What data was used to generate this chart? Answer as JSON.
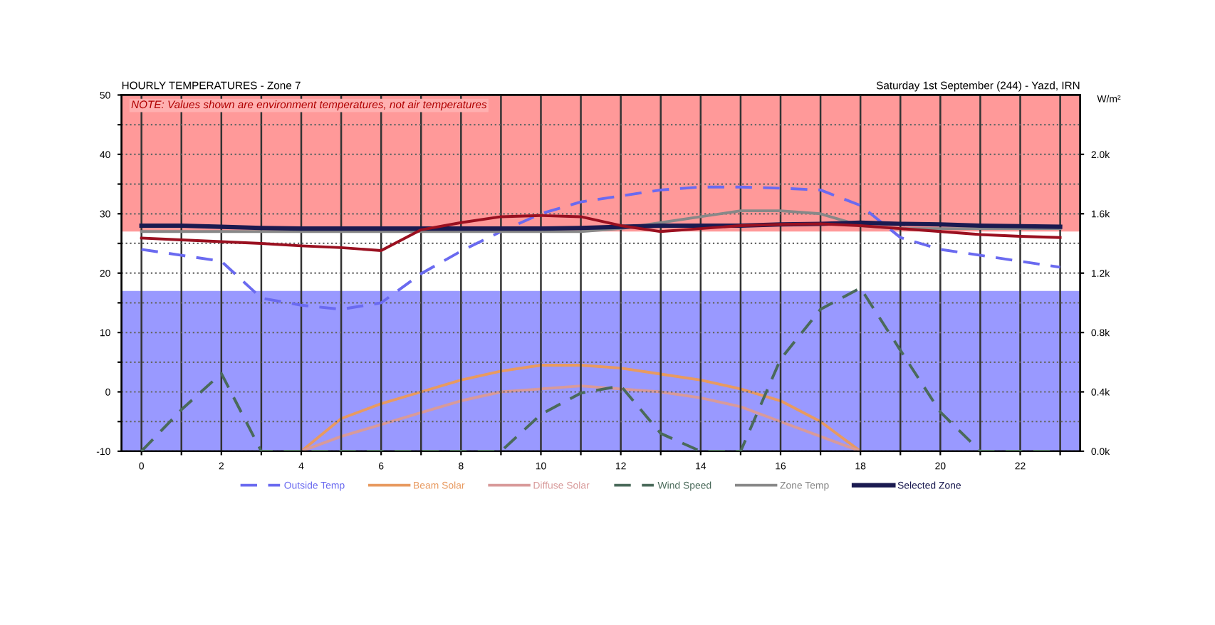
{
  "chart_data": {
    "type": "line",
    "title": "HOURLY TEMPERATURES - Zone 7",
    "subtitle": "Saturday 1st September (244) - Yazd, IRN",
    "y2label": "W/m²",
    "annotations": [
      "NOTE: Values shown are environment temperatures, not air temperatures"
    ],
    "x": [
      0,
      1,
      2,
      3,
      4,
      5,
      6,
      7,
      8,
      9,
      10,
      11,
      12,
      13,
      14,
      15,
      16,
      17,
      18,
      19,
      20,
      21,
      22,
      23
    ],
    "xlim": [
      -0.5,
      23.5
    ],
    "xticks": [
      0,
      {
        "value": 1,
        "label": null
      },
      2,
      {
        "value": 3,
        "label": null
      },
      4,
      {
        "value": 5,
        "label": null
      },
      6,
      {
        "value": 7,
        "label": null
      },
      8,
      {
        "value": 9,
        "label": null
      },
      10,
      {
        "value": 11,
        "label": null
      },
      12,
      {
        "value": 13,
        "label": null
      },
      14,
      {
        "value": 15,
        "label": null
      },
      16,
      {
        "value": 17,
        "label": null
      },
      18,
      {
        "value": 19,
        "label": null
      },
      20,
      {
        "value": 21,
        "label": null
      },
      22,
      {
        "value": 23,
        "label": null
      }
    ],
    "ylim": [
      -10,
      50
    ],
    "yticks": [
      -10,
      {
        "value": -5,
        "label": null
      },
      0,
      {
        "value": 5,
        "label": null
      },
      10,
      {
        "value": 15,
        "label": null
      },
      20,
      {
        "value": 25,
        "label": null
      },
      30,
      {
        "value": 35,
        "label": null
      },
      40,
      {
        "value": 45,
        "label": null
      },
      50
    ],
    "y2lim": [
      0,
      2400
    ],
    "y2ticks": [
      {
        "value": 0,
        "label": "0.0k"
      },
      {
        "value": 400,
        "label": "0.4k"
      },
      {
        "value": 800,
        "label": "0.8k"
      },
      {
        "value": 1200,
        "label": "1.2k"
      },
      {
        "value": 1600,
        "label": "1.6k"
      },
      {
        "value": 2000,
        "label": "2.0k"
      }
    ],
    "bands": [
      {
        "axis": "y",
        "from": 27,
        "to": 50,
        "color": "#ff9999"
      },
      {
        "axis": "y",
        "from": -10,
        "to": 17,
        "color": "#9999ff"
      }
    ],
    "grid": true,
    "legend": "bottom",
    "marker": "none",
    "series": [
      {
        "name": "Outside Temp",
        "color": "#6a6af0",
        "line_style": "dashed",
        "values": [
          24,
          23,
          22,
          15.8,
          14.6,
          13.9,
          15,
          19.9,
          23.7,
          27,
          30,
          32,
          33,
          34,
          34.5,
          34.5,
          34.3,
          34,
          31.4,
          26,
          24,
          23,
          22,
          21
        ]
      },
      {
        "name": "Beam Solar",
        "color": "#e89a60",
        "line_style": "solid",
        "axis": "y2",
        "values": [
          null,
          null,
          null,
          null,
          0,
          220,
          320,
          400,
          480,
          540,
          580,
          580,
          560,
          520,
          480,
          420,
          340,
          200,
          0,
          null,
          null,
          null,
          null,
          null
        ]
      },
      {
        "name": "Diffuse Solar",
        "color": "#d89a9a",
        "line_style": "solid",
        "axis": "y2",
        "values": [
          null,
          null,
          null,
          null,
          0,
          100,
          180,
          260,
          340,
          400,
          420,
          440,
          420,
          400,
          360,
          300,
          200,
          100,
          0,
          null,
          null,
          null,
          null,
          null
        ]
      },
      {
        "name": "Wind Speed",
        "color": "#4a6a5a",
        "line_style": "dashed",
        "values": [
          -10,
          -3,
          3.1,
          -10,
          -10,
          -10,
          -10,
          -10,
          -10,
          -10,
          -3.8,
          -0.2,
          1,
          -7,
          -10,
          -10,
          5.5,
          13.9,
          17.5,
          7,
          -3.4,
          -10,
          -10,
          -10
        ]
      },
      {
        "name": "Zone Temp",
        "color": "#888888",
        "line_style": "solid",
        "values": [
          27,
          27,
          27,
          27,
          27,
          27,
          27,
          27,
          27,
          27,
          27,
          27,
          27.5,
          28.5,
          29.5,
          30.5,
          30.5,
          30,
          28,
          27.5,
          27.5,
          27.5,
          27.5,
          27.5
        ]
      },
      {
        "name": "Selected Zone",
        "color": "#1a1a50",
        "line_style": "solid",
        "values": [
          28,
          28,
          27.8,
          27.6,
          27.5,
          27.5,
          27.5,
          27.5,
          27.5,
          27.5,
          27.5,
          27.6,
          27.8,
          28,
          28,
          28,
          28.2,
          28.3,
          28.5,
          28.3,
          28.2,
          28,
          27.9,
          27.8
        ]
      },
      {
        "color": "#9a1020",
        "line_style": "solid",
        "values": [
          25.9,
          25.6,
          25.3,
          25,
          24.6,
          24.3,
          23.8,
          27.3,
          28.5,
          29.5,
          29.7,
          29.5,
          28,
          27,
          27.5,
          28,
          28.2,
          28.3,
          28,
          27.5,
          27,
          26.5,
          26.2,
          26
        ]
      }
    ]
  }
}
